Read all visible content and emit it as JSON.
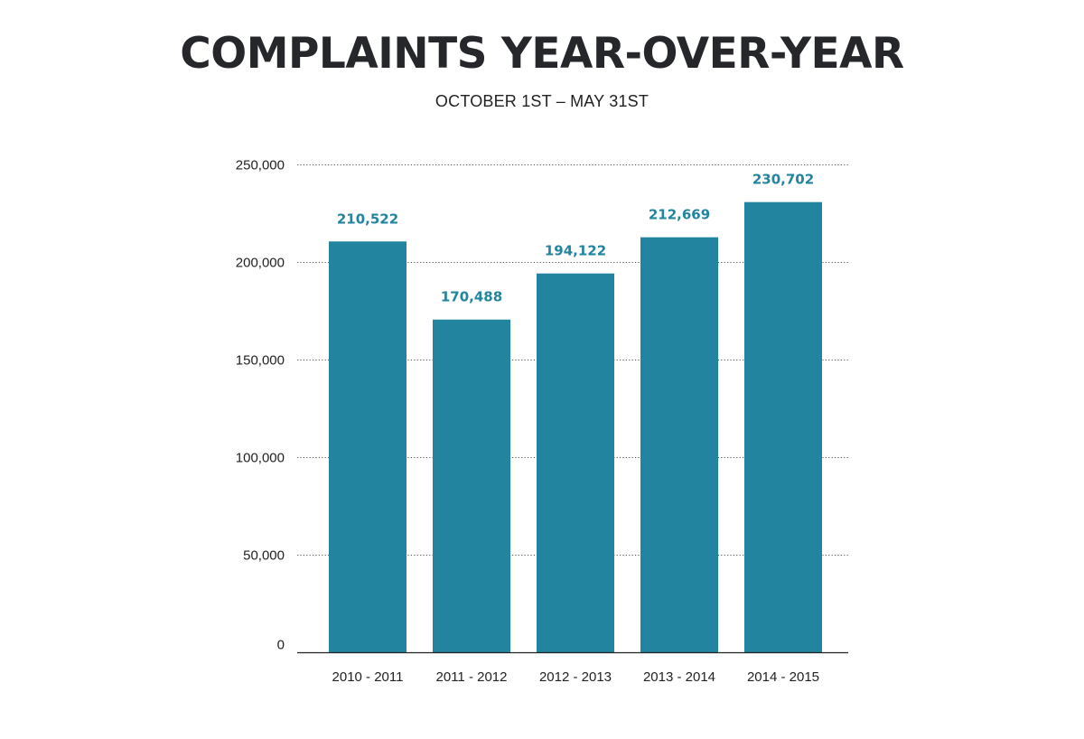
{
  "chart_data": {
    "type": "bar",
    "title": "COMPLAINTS YEAR-OVER-YEAR",
    "subtitle": "OCTOBER 1ST – MAY 31ST",
    "xlabel": "",
    "ylabel": "",
    "categories": [
      "2010 - 2011",
      "2011 - 2012",
      "2012 - 2013",
      "2013 - 2014",
      "2014 - 2015"
    ],
    "values": [
      210522,
      170488,
      194122,
      212669,
      230702
    ],
    "value_labels": [
      "210,522",
      "170,488",
      "194,122",
      "212,669",
      "230,702"
    ],
    "ylim": [
      0,
      250000
    ],
    "yticks": [
      0,
      50000,
      100000,
      150000,
      200000,
      250000
    ],
    "ytick_labels": [
      "0",
      "50,000",
      "100,000",
      "150,000",
      "200,000",
      "250,000"
    ],
    "grid": true,
    "grid_style": "dotted",
    "legend": "none",
    "colors": {
      "bar": "#23849f",
      "value_label": "#23849f",
      "grid": "#555555",
      "axis": "#222222"
    }
  }
}
